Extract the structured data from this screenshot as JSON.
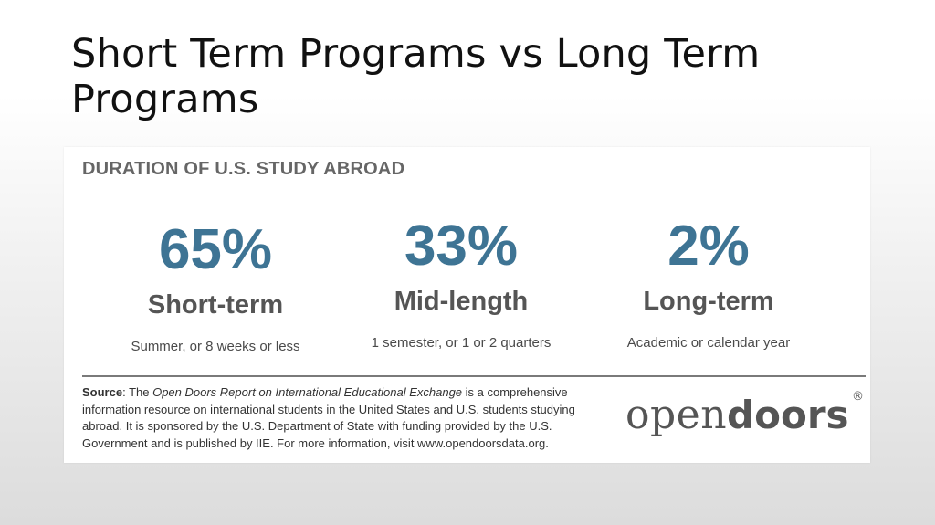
{
  "slide": {
    "title": "Short Term Programs vs Long Term Programs"
  },
  "card": {
    "heading": "DURATION OF U.S. STUDY ABROAD",
    "stats": [
      {
        "percent": "65%",
        "label": "Short-term",
        "description": "Summer, or 8 weeks or less"
      },
      {
        "percent": "33%",
        "label": "Mid-length",
        "description": "1 semester, or 1 or 2 quarters"
      },
      {
        "percent": "2%",
        "label": "Long-term",
        "description": "Academic or calendar year"
      }
    ],
    "source": {
      "lead": "Source",
      "text1": ": The ",
      "report_title": "Open Doors Report on International Educational Exchange",
      "text2": " is a comprehensive information resource on international students in the United States and U.S. students studying abroad. It is sponsored by the U.S. Department of State with funding provided by the U.S. Government and is published by IIE. For more information, visit www.opendoorsdata.org."
    },
    "logo": {
      "part1": "open",
      "part2": "doors",
      "registered": "®"
    }
  },
  "colors": {
    "accent": "#3e7494",
    "heading_gray": "#666666",
    "label_gray": "#555555"
  }
}
